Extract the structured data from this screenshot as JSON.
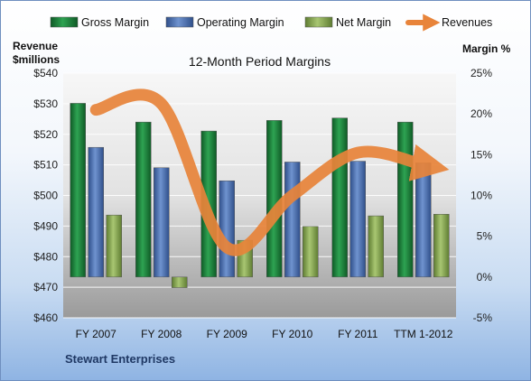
{
  "chart_data": {
    "type": "bar",
    "title": "12-Month Period Margins",
    "company": "Stewart Enterprises",
    "left_axis": {
      "label_line1": "Revenue",
      "label_line2": "$millions",
      "min": 460,
      "max": 540,
      "step": 10,
      "ticks": [
        "$460",
        "$470",
        "$480",
        "$490",
        "$500",
        "$510",
        "$520",
        "$530",
        "$540"
      ]
    },
    "right_axis": {
      "label": "Margin %",
      "min": -5,
      "max": 25,
      "step": 5,
      "ticks": [
        "-5%",
        "0%",
        "5%",
        "10%",
        "15%",
        "20%",
        "25%"
      ]
    },
    "categories": [
      "FY 2007",
      "FY 2008",
      "FY 2009",
      "FY 2010",
      "FY 2011",
      "TTM 1-2012"
    ],
    "series": [
      {
        "name": "Gross Margin",
        "axis": "right",
        "kind": "bar",
        "color": "#1e7d3c",
        "values": [
          21.3,
          19.0,
          17.9,
          19.2,
          19.5,
          19.0
        ]
      },
      {
        "name": "Operating Margin",
        "axis": "right",
        "kind": "bar",
        "color": "#4a6fb0",
        "values": [
          15.9,
          13.4,
          11.8,
          14.1,
          14.2,
          14.0
        ]
      },
      {
        "name": "Net Margin",
        "axis": "right",
        "kind": "bar",
        "color": "#8aab55",
        "values": [
          7.6,
          -1.3,
          4.5,
          6.2,
          7.5,
          7.7
        ]
      },
      {
        "name": "Revenues",
        "axis": "left",
        "kind": "arrow-line",
        "color": "#e8843a",
        "values": [
          528,
          530,
          483,
          500,
          514,
          510
        ]
      }
    ],
    "legend_position": "top",
    "grid": true
  }
}
